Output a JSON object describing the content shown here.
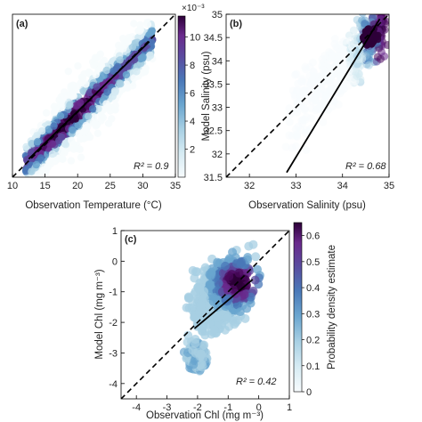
{
  "figure": {
    "colormap": [
      "#f7fbfd",
      "#d6ebf3",
      "#a7cfe3",
      "#6aa5cf",
      "#4a78b8",
      "#5b4a9e",
      "#6a2a8c",
      "#4b0a5e",
      "#2d0038"
    ],
    "density_color": "#6a2a8c",
    "fit_line_color": "#000000"
  },
  "chart_data": [
    {
      "type": "scatter",
      "panel_label": "(a)",
      "xlabel": "Observation Temperature (°C)",
      "ylabel": "",
      "xlim": [
        10,
        35
      ],
      "ylim": [
        10,
        35
      ],
      "xticks": [
        "10",
        "15",
        "20",
        "25",
        "30",
        "35"
      ],
      "yticks": [],
      "one_to_one_line": true,
      "fit_line": {
        "x": [
          12.5,
          31
        ],
        "y": [
          12.8,
          30.8
        ]
      },
      "r2_label": "R² = 0.9",
      "density_cloud": {
        "x_range": [
          12,
          31.5
        ],
        "center_slope": 0.98,
        "spread": 2.6
      },
      "colorbar": {
        "ticks": [
          "2",
          "4",
          "6",
          "8",
          "10"
        ],
        "exponent_label": "×10⁻³",
        "range": [
          0,
          11.5
        ]
      }
    },
    {
      "type": "scatter",
      "panel_label": "(b)",
      "xlabel": "Observation Salinity (psu)",
      "ylabel": "Model Salinity (psu)",
      "xlim": [
        31.5,
        35
      ],
      "ylim": [
        31.5,
        35
      ],
      "xticks": [
        "32",
        "33",
        "34",
        "35"
      ],
      "yticks": [
        "31.5",
        "32",
        "32.5",
        "33",
        "33.5",
        "34",
        "34.5",
        "35"
      ],
      "one_to_one_line": true,
      "fit_line": {
        "x": [
          32.8,
          34.8
        ],
        "y": [
          31.6,
          34.9
        ]
      },
      "r2_label": "R² = 0.68",
      "density_cloud": {
        "peak": [
          34.6,
          34.5
        ],
        "x_range": [
          33.0,
          34.9
        ]
      }
    },
    {
      "type": "scatter",
      "panel_label": "(c)",
      "xlabel": "Observation Chl (mg m⁻³)",
      "ylabel": "Model Chl (mg m⁻³)",
      "xlim": [
        -4.5,
        1
      ],
      "ylim": [
        -4.5,
        1
      ],
      "xticks": [
        "-4",
        "-3",
        "-2",
        "-1",
        "0",
        "1"
      ],
      "yticks": [
        "-4",
        "-3",
        "-2",
        "-1",
        "0",
        "1"
      ],
      "one_to_one_line": true,
      "fit_line": {
        "x": [
          -2.1,
          -0.2
        ],
        "y": [
          -2.2,
          -0.6
        ]
      },
      "r2_label": "R² = 0.42",
      "density_cloud": {
        "peak": [
          -0.7,
          -0.7
        ],
        "x_range": [
          -2.2,
          -0.1
        ]
      },
      "colorbar": {
        "title": "Probability density estimate",
        "ticks": [
          "0",
          "0.1",
          "0.2",
          "0.3",
          "0.4",
          "0.5",
          "0.6"
        ],
        "range": [
          0,
          0.65
        ]
      }
    }
  ]
}
